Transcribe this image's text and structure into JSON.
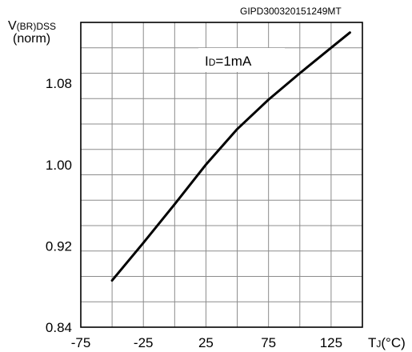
{
  "figure_code": "GIPD300320151249MT",
  "annotation": {
    "main": "I",
    "sub": "D",
    "rest": "=1mA"
  },
  "ylabel": {
    "main": "V",
    "sub": "(BR)DSS",
    "norm": "(norm)"
  },
  "xlabel": {
    "main": "T",
    "sub": "J",
    "unit": "(°C)"
  },
  "chart_data": {
    "type": "line",
    "title": "",
    "xlim": [
      -75,
      150
    ],
    "ylim": [
      0.84,
      1.14
    ],
    "x_ticks": [
      {
        "value": -75,
        "label": "-75"
      },
      {
        "value": -25,
        "label": "-25"
      },
      {
        "value": 25,
        "label": "25"
      },
      {
        "value": 75,
        "label": "75"
      },
      {
        "value": 125,
        "label": "125"
      }
    ],
    "y_ticks": [
      {
        "value": 0.84,
        "label": "0.84"
      },
      {
        "value": 0.92,
        "label": "0.92"
      },
      {
        "value": 1.0,
        "label": "1.00"
      },
      {
        "value": 1.08,
        "label": "1.08"
      }
    ],
    "grid": true,
    "series": [
      {
        "x": [
          -50,
          -25,
          0,
          25,
          50,
          75,
          100,
          125,
          140
        ],
        "y": [
          0.886,
          0.923,
          0.961,
          1.0,
          1.035,
          1.064,
          1.09,
          1.115,
          1.13
        ]
      }
    ]
  }
}
